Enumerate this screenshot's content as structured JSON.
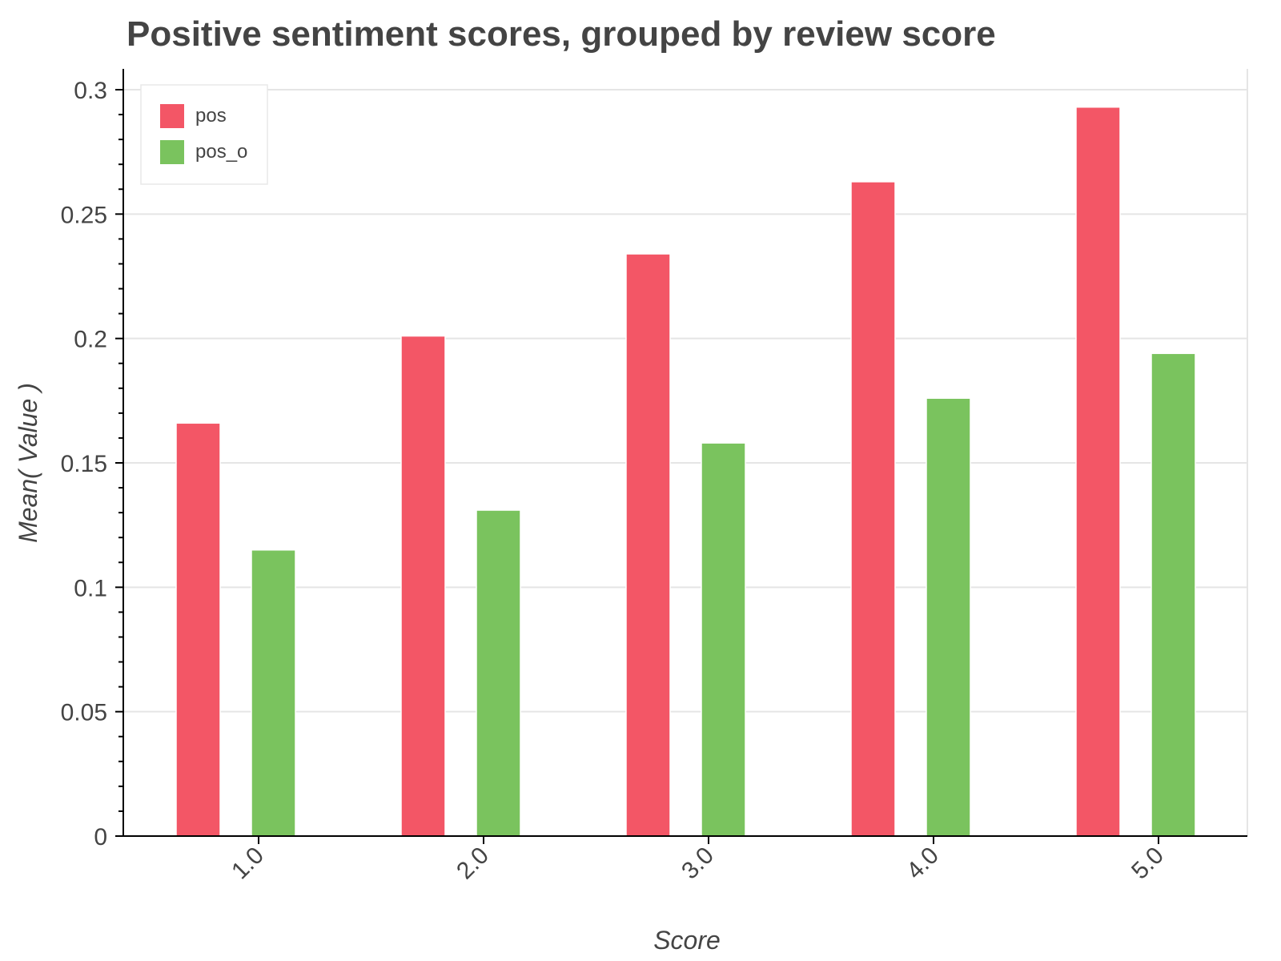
{
  "chart_data": {
    "type": "bar",
    "title": "Positive sentiment scores, grouped by review score",
    "xlabel": "Score",
    "ylabel": "Mean( Value )",
    "categories": [
      "1.0",
      "2.0",
      "3.0",
      "4.0",
      "5.0"
    ],
    "series": [
      {
        "name": "pos",
        "color": "#f35666",
        "values": [
          0.166,
          0.201,
          0.234,
          0.263,
          0.293
        ]
      },
      {
        "name": "pos_o",
        "color": "#7ac35e",
        "values": [
          0.115,
          0.131,
          0.158,
          0.176,
          0.194
        ]
      }
    ],
    "ylim": [
      0,
      0.3
    ],
    "yticks": [
      0,
      0.05,
      0.1,
      0.15,
      0.2,
      0.25,
      0.3
    ],
    "ytick_labels": [
      "0",
      "0.05",
      "0.1",
      "0.15",
      "0.2",
      "0.25",
      "0.3"
    ],
    "grid": true,
    "legend_position": "top-left"
  }
}
